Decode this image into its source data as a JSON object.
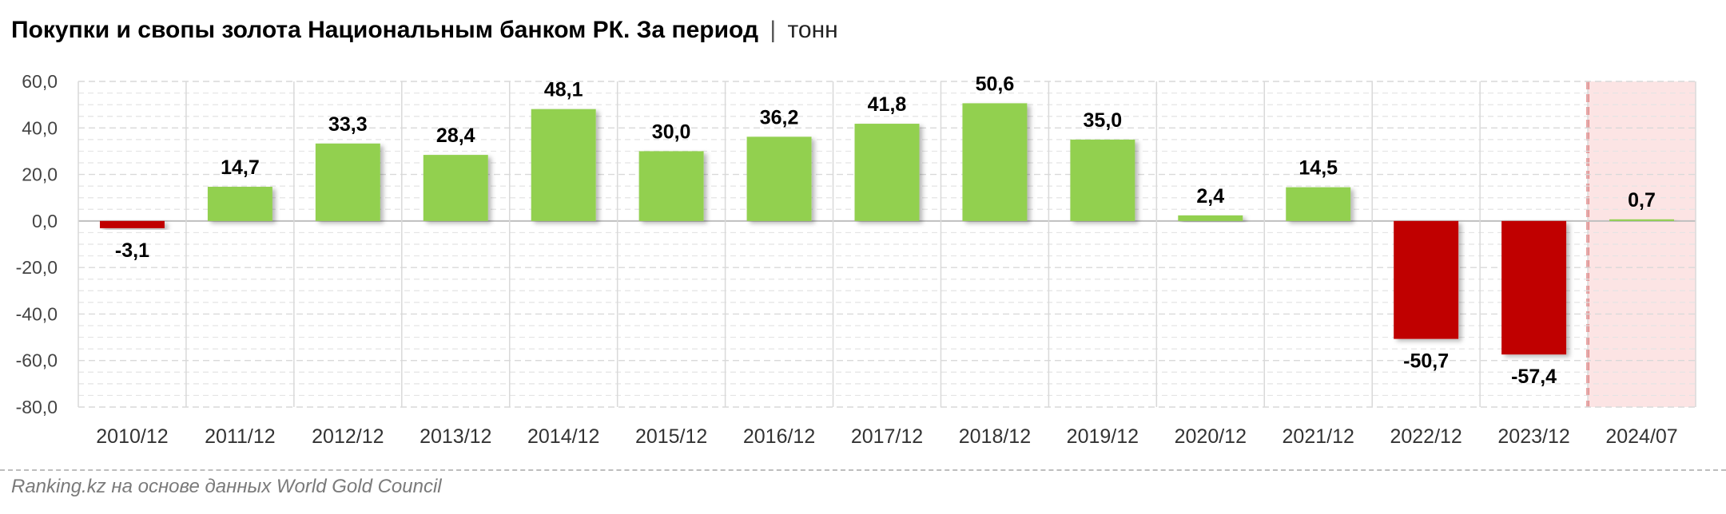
{
  "title": {
    "main": "Покупки и свопы золота Национальным банком РК. За период",
    "separator": "|",
    "unit": "тонн"
  },
  "source": "Ranking.kz на основе данных World Gold Council",
  "colors": {
    "positive": "#92d050",
    "negative": "#c00000",
    "highlight_fill": "#fce4e4",
    "highlight_line": "#e03030",
    "grid": "#d9d9d9",
    "zero_line": "#bfbfbf"
  },
  "chart_data": {
    "type": "bar",
    "categories": [
      "2010/12",
      "2011/12",
      "2012/12",
      "2013/12",
      "2014/12",
      "2015/12",
      "2016/12",
      "2017/12",
      "2018/12",
      "2019/12",
      "2020/12",
      "2021/12",
      "2022/12",
      "2023/12",
      "2024/07"
    ],
    "values": [
      -3.1,
      14.7,
      33.3,
      28.4,
      48.1,
      30.0,
      36.2,
      41.8,
      50.6,
      35.0,
      2.4,
      14.5,
      -50.7,
      -57.4,
      0.7
    ],
    "data_labels": [
      "-3,1",
      "14,7",
      "33,3",
      "28,4",
      "48,1",
      "30,0",
      "36,2",
      "41,8",
      "50,6",
      "35,0",
      "2,4",
      "14,5",
      "-50,7",
      "-57,4",
      "0,7"
    ],
    "y_ticks": [
      60,
      40,
      20,
      0,
      -20,
      -40,
      -60,
      -80
    ],
    "y_tick_labels": [
      "60,0",
      "40,0",
      "20,0",
      "0,0",
      "-20,0",
      "-40,0",
      "-60,0",
      "-80,0"
    ],
    "ylim": [
      -80,
      60
    ],
    "highlighted_category": "2024/07",
    "grid": true,
    "xlabel": "",
    "ylabel": ""
  }
}
